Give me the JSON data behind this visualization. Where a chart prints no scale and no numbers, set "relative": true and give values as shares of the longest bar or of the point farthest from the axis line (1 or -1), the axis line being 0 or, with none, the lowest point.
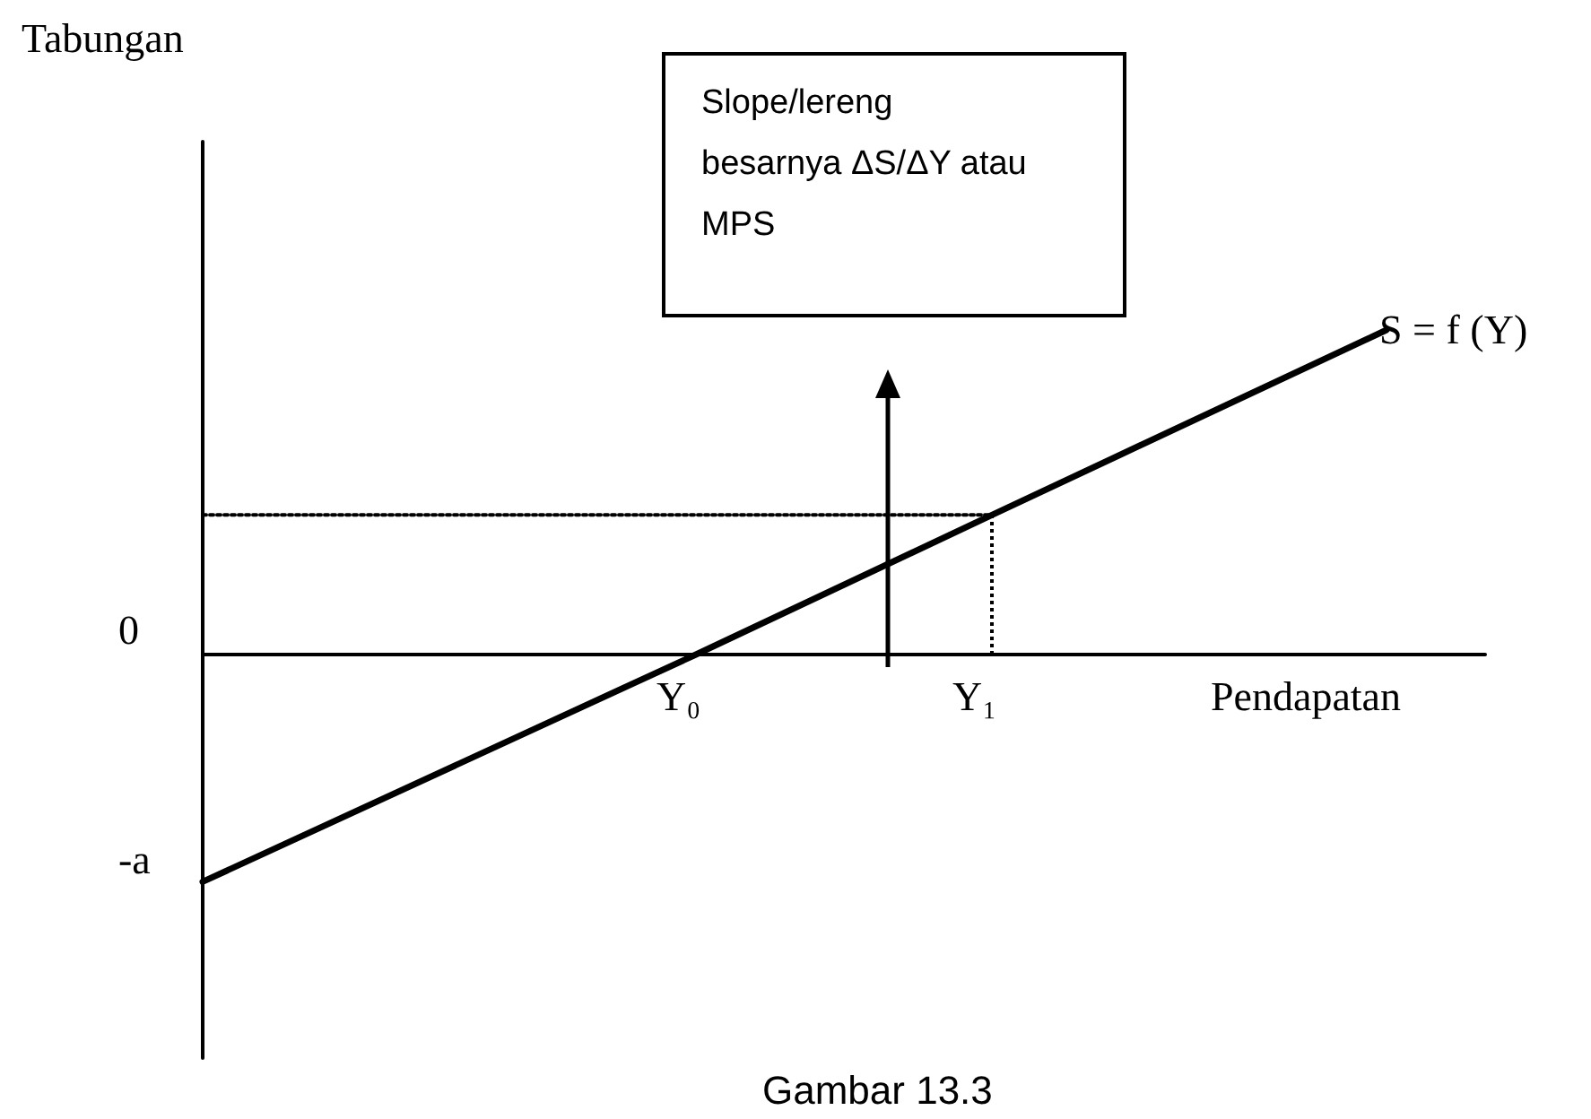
{
  "chart_data": {
    "type": "line",
    "title": "Gambar 13.3",
    "xlabel": "Pendapatan",
    "relative": true,
    "marker": "none",
    "categories": [
      null,
      null,
      null,
      null,
      null,
      "Y₀",
      null,
      null,
      "Y₁",
      null,
      null,
      null,
      null,
      null
    ],
    "series": [
      {
        "name": "S = f (Y)",
        "color": "#000000",
        "line_style": "solid",
        "values": [
          -0.7,
          null,
          null,
          null,
          null,
          0,
          null,
          null,
          0.43,
          null,
          null,
          null,
          1,
          null
        ]
      },
      {
        "color": "#000000",
        "line_style": "dotted",
        "values": [
          0.43,
          null,
          null,
          null,
          null,
          null,
          null,
          null,
          0.43,
          null,
          null,
          null,
          null,
          null
        ]
      }
    ],
    "ref_lines": [
      {
        "axis": "x",
        "value": "Y₁",
        "color": "#000000",
        "line_style": "dotted"
      }
    ],
    "annotations": [
      "Tabungan",
      "0",
      "-a",
      "Slope/lereng besarnya ΔS/ΔY atau MPS"
    ]
  }
}
